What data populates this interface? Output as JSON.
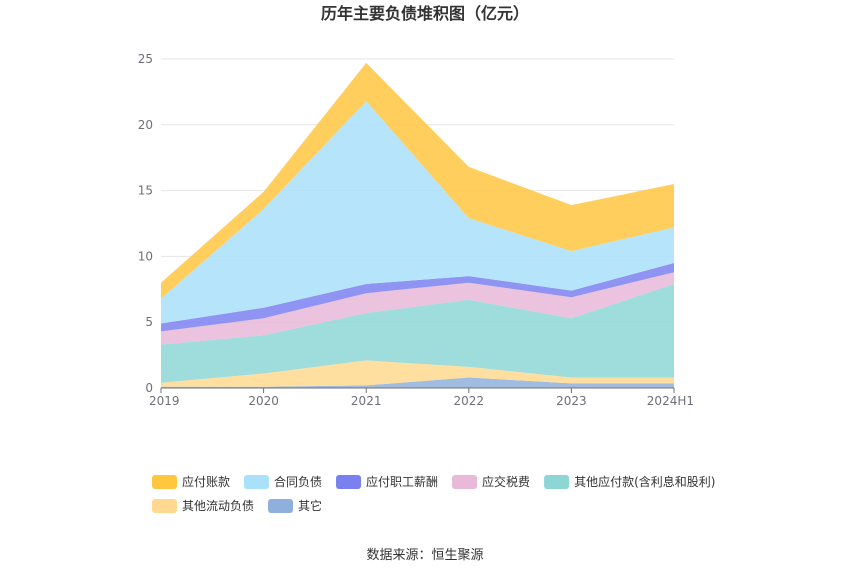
{
  "chart_data": {
    "type": "area",
    "stacked": true,
    "title": "历年主要负债堆积图（亿元）",
    "categories": [
      "2019",
      "2020",
      "2021",
      "2022",
      "2023",
      "2024H1"
    ],
    "ylim": [
      0,
      25
    ],
    "yticks": [
      0,
      5,
      10,
      15,
      20,
      25
    ],
    "grid": true,
    "legend_position": "bottom",
    "series": [
      {
        "name": "其它",
        "color": "#8fb0dc",
        "values": [
          0.1,
          0.1,
          0.2,
          0.8,
          0.35,
          0.35
        ]
      },
      {
        "name": "其他流动负债",
        "color": "#ffd98f",
        "values": [
          0.3,
          1.0,
          1.9,
          0.8,
          0.45,
          0.45
        ]
      },
      {
        "name": "其他应付款(含利息和股利)",
        "color": "#8ed6d6",
        "values": [
          2.9,
          2.9,
          3.6,
          5.1,
          4.5,
          7.1
        ]
      },
      {
        "name": "应交税费",
        "color": "#e8b9d8",
        "values": [
          1.0,
          1.3,
          1.5,
          1.3,
          1.6,
          0.9
        ]
      },
      {
        "name": "应付职工薪酬",
        "color": "#7b80f0",
        "values": [
          0.6,
          0.8,
          0.7,
          0.5,
          0.5,
          0.7
        ]
      },
      {
        "name": "合同负债",
        "color": "#a9e0fa",
        "values": [
          1.9,
          7.5,
          13.9,
          4.4,
          3.0,
          2.7
        ]
      },
      {
        "name": "应付账款",
        "color": "#ffc63f",
        "values": [
          1.2,
          1.3,
          2.9,
          3.9,
          3.5,
          3.3
        ]
      }
    ],
    "legend_order": [
      "应付账款",
      "合同负债",
      "应付职工薪酬",
      "应交税费",
      "其他应付款(含利息和股利)",
      "其他流动负债",
      "其它"
    ]
  },
  "source": "数据来源：恒生聚源"
}
